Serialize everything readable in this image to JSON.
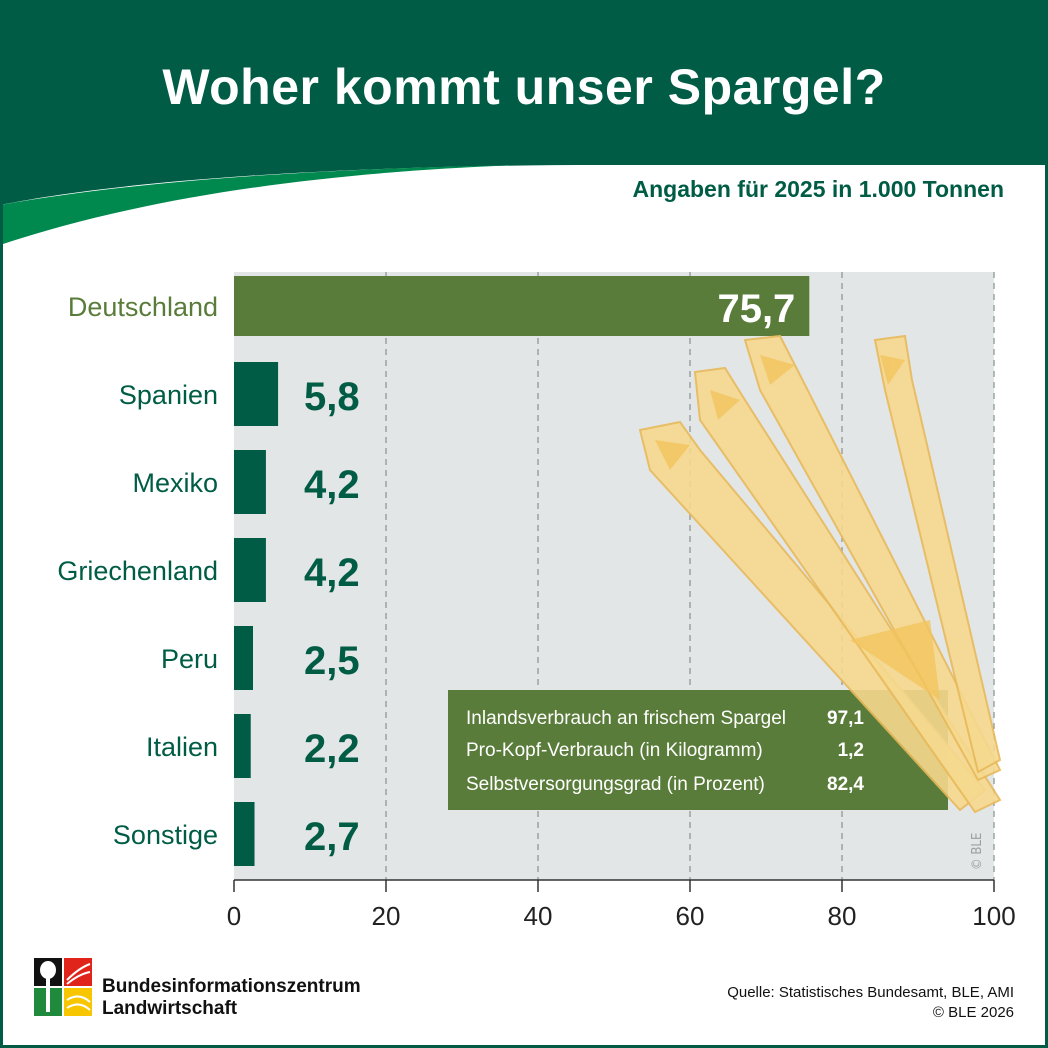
{
  "header": {
    "title": "Woher kommt unser Spargel?",
    "subtitle": "Angaben für 2025 in 1.000 Tonnen"
  },
  "colors": {
    "header_green": "#005c45",
    "swoosh_green": "#00894f",
    "highlight_bar": "#5a7c3a",
    "bar": "#005c45",
    "plot_bg": "#e3e6e6"
  },
  "chart_data": {
    "type": "bar",
    "orientation": "horizontal",
    "title": "Woher kommt unser Spargel?",
    "subtitle": "Angaben für 2025 in 1.000 Tonnen",
    "categories": [
      "Deutschland",
      "Spanien",
      "Mexiko",
      "Griechenland",
      "Peru",
      "Italien",
      "Sonstige"
    ],
    "values": [
      75.7,
      5.8,
      4.2,
      4.2,
      2.5,
      2.2,
      2.7
    ],
    "value_labels": [
      "75,7",
      "5,8",
      "4,2",
      "4,2",
      "2,5",
      "2,2",
      "2,7"
    ],
    "xlim": [
      0,
      100
    ],
    "xticks": [
      0,
      20,
      40,
      60,
      80,
      100
    ],
    "grid": true,
    "highlight": "Deutschland"
  },
  "stats": [
    {
      "label": "Inlandsverbrauch an frischem Spargel",
      "value": "97,1"
    },
    {
      "label": "Pro-Kopf-Verbrauch (in Kilogramm)",
      "value": "1,2"
    },
    {
      "label": "Selbstversorgungsgrad (in Prozent)",
      "value": "82,4"
    }
  ],
  "image_credit": "© BLE",
  "footer": {
    "brand_line1": "Bundesinformationszentrum",
    "brand_line2": "Landwirtschaft",
    "source": "Quelle: Statistisches Bundesamt, BLE, AMI",
    "copyright": "© BLE 2026"
  }
}
